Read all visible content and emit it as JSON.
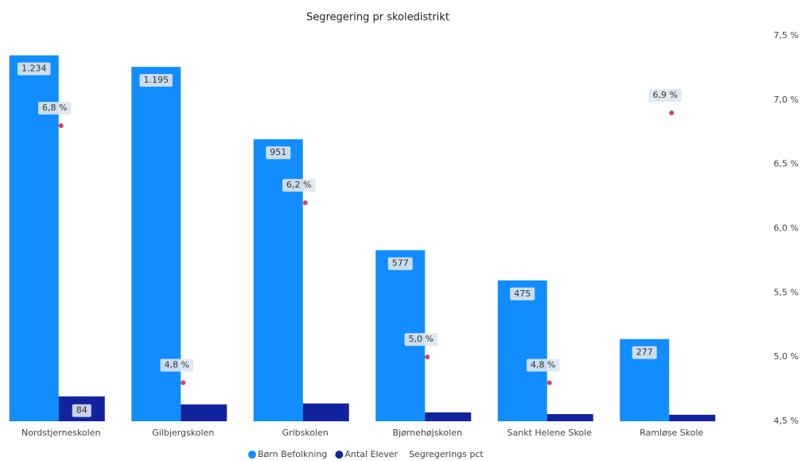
{
  "chart_data": {
    "type": "bar",
    "title": "Segregering pr skoledistrikt",
    "categories": [
      "Nordstjerneskolen",
      "Gilbjergskolen",
      "Gribskolen",
      "Bjørnehøjskolen",
      "Sankt Helene Skole",
      "Ramløse Skole"
    ],
    "ylim": [
      0,
      1300
    ],
    "series": [
      {
        "name": "Børn Befolkning",
        "color": "#118dff",
        "values": [
          1234,
          1195,
          951,
          577,
          475,
          277
        ],
        "value_labels": [
          "1.234",
          "1.195",
          "951",
          "577",
          "475",
          "277"
        ]
      },
      {
        "name": "Antal Elever",
        "color": "#12239e",
        "values": [
          84,
          57,
          60,
          30,
          24,
          22
        ],
        "value_labels": [
          "84",
          null,
          null,
          null,
          null,
          null
        ]
      },
      {
        "name": "Segregerings pct",
        "color": "#d64550",
        "axis": "y2",
        "values": [
          6.8,
          4.8,
          6.2,
          5.0,
          4.8,
          6.9
        ],
        "value_labels": [
          "6,8 %",
          "4,8 %",
          "6,2 %",
          "5,0 %",
          "4,8 %",
          "6,9 %"
        ]
      }
    ],
    "y2lim": [
      4.5,
      7.5
    ],
    "y2ticks": [
      {
        "value": 4.5,
        "label": "4,5 %"
      },
      {
        "value": 5.0,
        "label": "5,0 %"
      },
      {
        "value": 5.5,
        "label": "5,5 %"
      },
      {
        "value": 6.0,
        "label": "6,0 %"
      },
      {
        "value": 6.5,
        "label": "6,5 %"
      },
      {
        "value": 7.0,
        "label": "7,0 %"
      },
      {
        "value": 7.5,
        "label": "7,5 %"
      }
    ]
  }
}
